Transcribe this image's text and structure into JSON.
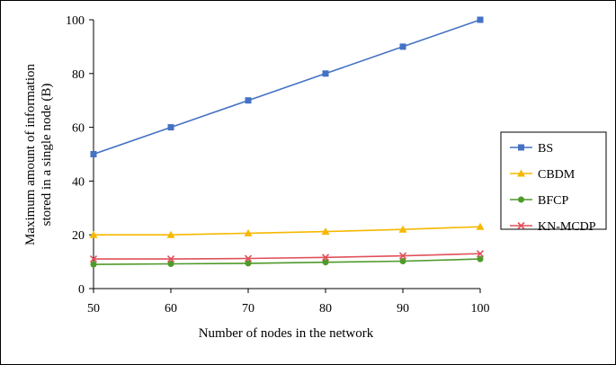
{
  "chart_data": {
    "type": "line",
    "x": [
      50,
      60,
      70,
      80,
      90,
      100
    ],
    "xlabel": "Number of nodes in the network",
    "ylabel_lines": [
      "Maximum amount of information",
      "stored in a single node (B)"
    ],
    "xlim": [
      50,
      100
    ],
    "ylim": [
      0,
      100
    ],
    "xticks": [
      "50",
      "60",
      "70",
      "80",
      "90",
      "100"
    ],
    "yticks": [
      "0",
      "20",
      "40",
      "60",
      "80",
      "100"
    ],
    "grid": false,
    "legend_position": "right",
    "series": [
      {
        "name": "BS",
        "color": "#4472C4",
        "marker": "square",
        "values": [
          50,
          60,
          70,
          80,
          90,
          100
        ]
      },
      {
        "name": "CBDM",
        "color": "#F5B800",
        "marker": "triangle",
        "values": [
          20,
          20,
          20.6,
          21.2,
          22,
          23
        ]
      },
      {
        "name": "BFCP",
        "color": "#4E9A2A",
        "marker": "circle",
        "values": [
          9,
          9.2,
          9.4,
          9.8,
          10.2,
          11
        ]
      },
      {
        "name": "KN-MCDP",
        "color": "#E0505A",
        "marker": "x",
        "values": [
          11,
          11,
          11.2,
          11.6,
          12.2,
          13
        ]
      }
    ]
  }
}
